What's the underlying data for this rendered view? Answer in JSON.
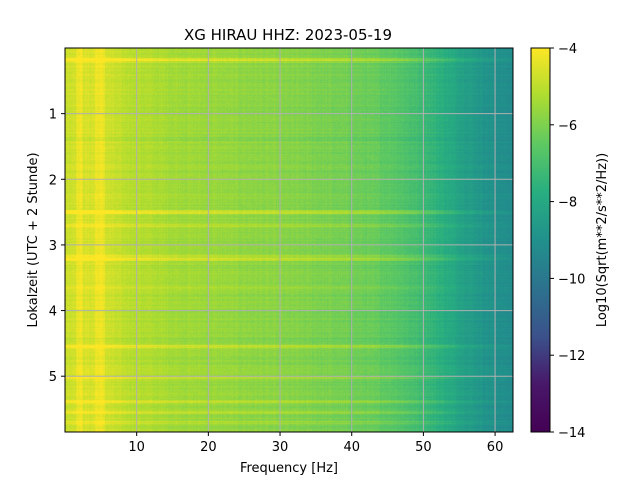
{
  "chart_data": {
    "type": "heatmap",
    "title": "XG HIRAU  HHZ: 2023-05-19",
    "xlabel": "Frequency [Hz]",
    "ylabel": "Lokalzeit (UTC + 2 Stunde)",
    "xlim": [
      0,
      62.5
    ],
    "ylim": [
      5.85,
      0
    ],
    "x_ticks": [
      10,
      20,
      30,
      40,
      50,
      60
    ],
    "x_tick_labels": [
      "10",
      "20",
      "30",
      "40",
      "50",
      "60"
    ],
    "y_ticks": [
      1,
      2,
      3,
      4,
      5
    ],
    "y_tick_labels": [
      "1",
      "2",
      "3",
      "4",
      "5"
    ],
    "grid": true,
    "colormap": "viridis",
    "colorbar": {
      "label": "Log10(Sqrt(m**2/s**2/Hz))",
      "range": [
        -14,
        -4
      ],
      "ticks": [
        -14,
        -12,
        -10,
        -8,
        -6,
        -4
      ],
      "tick_labels": [
        "−14",
        "−12",
        "−10",
        "−8",
        "−6",
        "−4"
      ]
    },
    "spectral_model": {
      "description": "approximate log10 amplitude vs frequency (Hz)",
      "frequency": [
        0,
        2,
        5,
        8,
        15,
        25,
        35,
        42,
        46,
        48,
        50,
        53,
        56,
        59,
        62.5
      ],
      "value": [
        -4.8,
        -4.6,
        -4.6,
        -5.0,
        -5.4,
        -5.7,
        -6.0,
        -6.3,
        -6.6,
        -6.9,
        -7.2,
        -7.8,
        -8.4,
        -8.9,
        -9.2
      ]
    },
    "loud_low_freq_bands_hz": [
      [
        1.5,
        2.5
      ],
      [
        4.2,
        5.6
      ]
    ],
    "bright_time_bands": [
      {
        "hour": 0.18,
        "strength": 0.7
      },
      {
        "hour": 0.2,
        "strength": 0.5
      },
      {
        "hour": 2.5,
        "strength": 1.0
      },
      {
        "hour": 2.7,
        "strength": 0.6
      },
      {
        "hour": 3.22,
        "strength": 1.0
      },
      {
        "hour": 3.18,
        "strength": 0.5
      },
      {
        "hour": 3.65,
        "strength": 0.4
      },
      {
        "hour": 4.55,
        "strength": 0.8
      },
      {
        "hour": 5.02,
        "strength": 0.6
      },
      {
        "hour": 5.38,
        "strength": 0.7
      },
      {
        "hour": 5.55,
        "strength": 0.7
      },
      {
        "hour": 5.7,
        "strength": 0.4
      }
    ],
    "dark_time_bands": [
      {
        "hour": 1.38,
        "strength": 0.3
      },
      {
        "hour": 4.45,
        "strength": 0.25
      }
    ]
  }
}
